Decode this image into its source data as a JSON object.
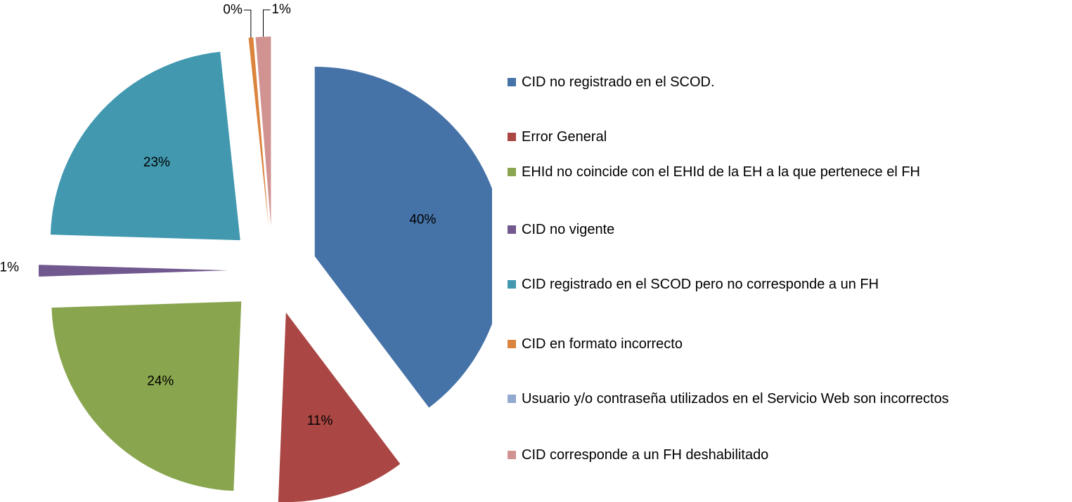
{
  "chart_data": {
    "type": "pie",
    "categories": [
      "CID no registrado en el SCOD.",
      "Error General",
      "EHId no coincide con el EHId de la EH a la que pertenece el FH",
      "CID no vigente",
      "CID registrado en el SCOD pero no corresponde a un FH",
      "CID en formato incorrecto",
      "Usuario y/o contraseña utilizados en el Servicio Web son incorrectos",
      "CID corresponde a un FH deshabilitado"
    ],
    "values": [
      40,
      11,
      24,
      1,
      23,
      0.4,
      0,
      1.3
    ],
    "value_labels": [
      "40%",
      "11%",
      "24%",
      "1%",
      "23%",
      "0%",
      null,
      "1%"
    ],
    "colors": [
      "#4572a7",
      "#aa4643",
      "#89a54e",
      "#71588f",
      "#4198af",
      "#db843d",
      "#93a9cf",
      "#d19392"
    ],
    "legend": "right"
  }
}
